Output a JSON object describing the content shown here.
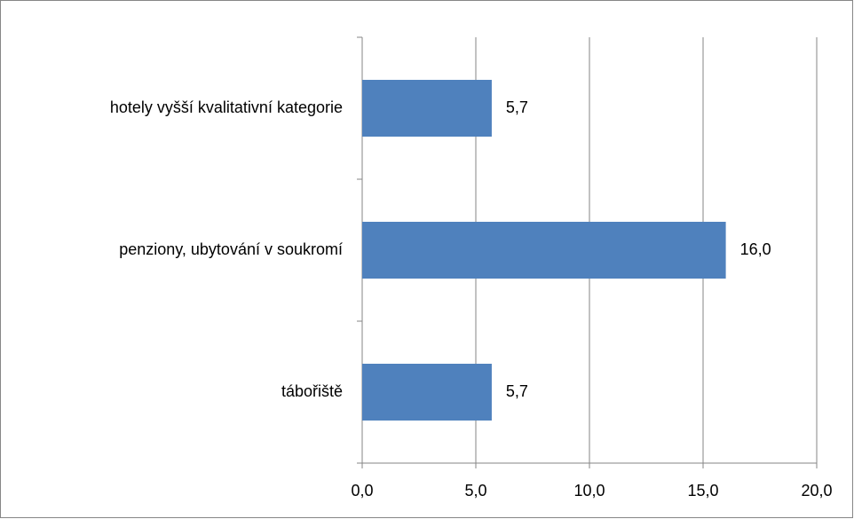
{
  "chart_data": {
    "type": "bar",
    "orientation": "horizontal",
    "categories": [
      "hotely vyšší kvalitativní kategorie",
      "penziony, ubytování v soukromí",
      "tábořiště"
    ],
    "values": [
      5.7,
      16.0,
      5.7
    ],
    "value_labels": [
      "5,7",
      "16,0",
      "5,7"
    ],
    "color": "#4f81bd",
    "xlim": [
      0,
      20
    ],
    "xticks": [
      {
        "value": 0,
        "label": "0,0"
      },
      {
        "value": 5,
        "label": "5,0"
      },
      {
        "value": 10,
        "label": "10,0"
      },
      {
        "value": 15,
        "label": "15,0"
      },
      {
        "value": 20,
        "label": "20,0"
      }
    ],
    "grid": true
  }
}
